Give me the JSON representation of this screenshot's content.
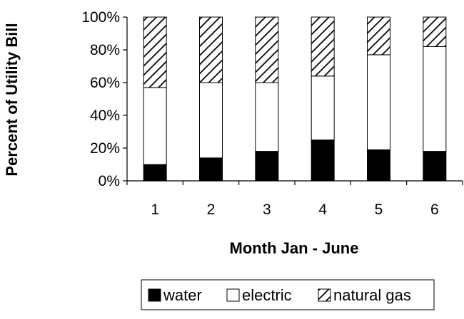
{
  "chart_data": {
    "type": "bar",
    "stacked": true,
    "percent": true,
    "title": "",
    "xlabel": "Month Jan - June",
    "ylabel": "Percent of Utility Bill",
    "categories": [
      "1",
      "2",
      "3",
      "4",
      "5",
      "6"
    ],
    "ylim": [
      0,
      100
    ],
    "yticks": [
      "0%",
      "20%",
      "40%",
      "60%",
      "80%",
      "100%"
    ],
    "grid": false,
    "legend_position": "bottom",
    "series": [
      {
        "name": "water",
        "values": [
          10,
          14,
          18,
          25,
          19,
          18
        ],
        "fill": "#000000",
        "pattern": "solid"
      },
      {
        "name": "electric",
        "values": [
          47,
          46,
          42,
          39,
          58,
          64
        ],
        "fill": "#ffffff",
        "pattern": "solid"
      },
      {
        "name": "natural gas",
        "values": [
          43,
          40,
          40,
          36,
          23,
          18
        ],
        "fill": "#ffffff",
        "pattern": "diagonal-hatch"
      }
    ]
  }
}
